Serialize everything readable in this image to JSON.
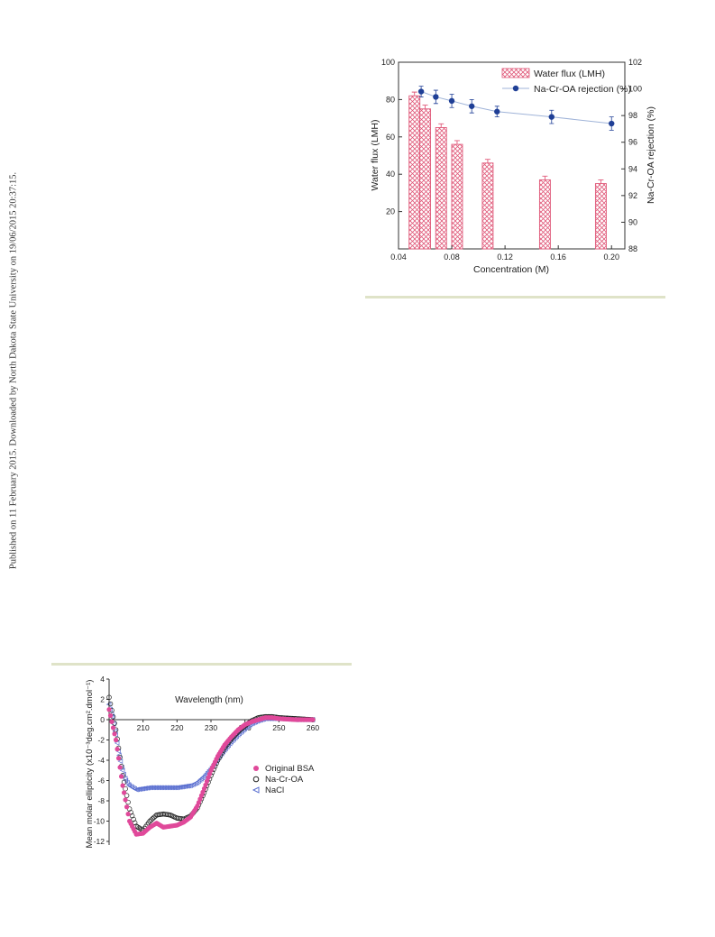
{
  "side_note": "Published on 11 February 2015. Downloaded by North Dakota State University on 19/06/2015 20:37:15.",
  "chart_data": [
    {
      "type": "bar",
      "xlabel": "Concentration (M)",
      "ylabel_left": "Water flux (LMH)",
      "ylabel_right": "Na-Cr-OA rejection (%)",
      "xlim": [
        0.04,
        0.21
      ],
      "ylim_left": [
        0,
        100
      ],
      "ylim_right": [
        88,
        102
      ],
      "x_ticks": [
        "0.04",
        "0.08",
        "0.12",
        "0.16",
        "0.20"
      ],
      "y_left_ticks": [
        "20",
        "40",
        "60",
        "80",
        "100"
      ],
      "y_right_ticks": [
        "88",
        "90",
        "92",
        "94",
        "96",
        "98",
        "100",
        "102"
      ],
      "legend": [
        "Water flux (LMH)",
        "Na-Cr-OA rejection (%)"
      ],
      "legend_position": "top-right",
      "series": [
        {
          "name": "Water flux (LMH)",
          "kind": "bar",
          "x": [
            0.052,
            0.06,
            0.072,
            0.084,
            0.107,
            0.15,
            0.192
          ],
          "values": [
            82,
            75,
            65,
            56,
            46,
            37,
            35
          ],
          "errors": [
            2,
            2,
            2,
            2,
            2,
            2,
            2
          ]
        },
        {
          "name": "Na-Cr-OA rejection (%)",
          "kind": "line-marker",
          "x": [
            0.057,
            0.068,
            0.08,
            0.095,
            0.114,
            0.155,
            0.2
          ],
          "values": [
            99.8,
            99.4,
            99.1,
            98.7,
            98.3,
            97.9,
            97.4
          ],
          "errors": [
            0.4,
            0.5,
            0.5,
            0.5,
            0.4,
            0.5,
            0.5
          ]
        }
      ],
      "colors": {
        "bar": "#e05a7a",
        "line": "#9fb3d8",
        "marker": "#1f3f96"
      }
    },
    {
      "type": "scatter",
      "xlabel": "Wavelength (nm)",
      "ylabel": "Mean molar ellipticity (x10⁻³deg.cm².dmol⁻¹)",
      "xlim": [
        200,
        260
      ],
      "ylim": [
        -13,
        4
      ],
      "x_ticks": [
        "210",
        "220",
        "230",
        "240",
        "250",
        "260"
      ],
      "y_ticks": [
        "4",
        "2",
        "0",
        "-2",
        "-4",
        "-6",
        "-8",
        "-10",
        "-12"
      ],
      "legend": [
        "Original BSA",
        "Na-Cr-OA",
        "NaCl"
      ],
      "legend_position": "right",
      "series": [
        {
          "name": "Original BSA",
          "marker": "filled-circle",
          "x": [
            200,
            202,
            204,
            206,
            208,
            210,
            212,
            214,
            216,
            218,
            220,
            222,
            224,
            226,
            228,
            230,
            232,
            234,
            236,
            238,
            240,
            242,
            244,
            246,
            248,
            250,
            255,
            260
          ],
          "values": [
            1,
            -2,
            -6.5,
            -10,
            -11.3,
            -11.2,
            -10.6,
            -10.2,
            -10.6,
            -10.5,
            -10.4,
            -10.1,
            -9.6,
            -8.5,
            -6.8,
            -5,
            -3.6,
            -2.5,
            -1.7,
            -1,
            -0.5,
            -0.2,
            0,
            0.2,
            0.2,
            0.1,
            0,
            0
          ]
        },
        {
          "name": "Na-Cr-OA",
          "marker": "open-circle",
          "x": [
            200,
            202,
            204,
            206,
            208,
            210,
            212,
            214,
            216,
            218,
            220,
            222,
            224,
            226,
            228,
            230,
            232,
            234,
            236,
            238,
            240,
            242,
            244,
            246,
            248,
            250,
            255,
            260
          ],
          "values": [
            2.2,
            -1,
            -5.5,
            -8.8,
            -10.5,
            -10.9,
            -10,
            -9.4,
            -9.3,
            -9.4,
            -9.7,
            -9.8,
            -9.5,
            -8.7,
            -7.2,
            -5.5,
            -4,
            -2.8,
            -1.9,
            -1.2,
            -0.6,
            -0.1,
            0.2,
            0.3,
            0.3,
            0.2,
            0.1,
            0
          ]
        },
        {
          "name": "NaCl",
          "marker": "open-triangle",
          "x": [
            200,
            201,
            202,
            203,
            204,
            205,
            206,
            208,
            210,
            212,
            214,
            216,
            218,
            220,
            222,
            224,
            226,
            228,
            230,
            232,
            234,
            236,
            238,
            240,
            242,
            244,
            246,
            248,
            250,
            255,
            260
          ],
          "values": [
            1.5,
            0.3,
            -1.5,
            -3.5,
            -5,
            -6,
            -6.5,
            -6.9,
            -6.8,
            -6.7,
            -6.7,
            -6.7,
            -6.7,
            -6.7,
            -6.6,
            -6.5,
            -6.2,
            -5.6,
            -4.8,
            -3.9,
            -3,
            -2.2,
            -1.5,
            -0.9,
            -0.4,
            -0.1,
            0.1,
            0.1,
            0.1,
            0,
            0
          ]
        }
      ],
      "colors": {
        "Original BSA": "#e0499a",
        "Na-Cr-OA": "#222222",
        "NaCl": "#5a6fd0"
      }
    }
  ]
}
